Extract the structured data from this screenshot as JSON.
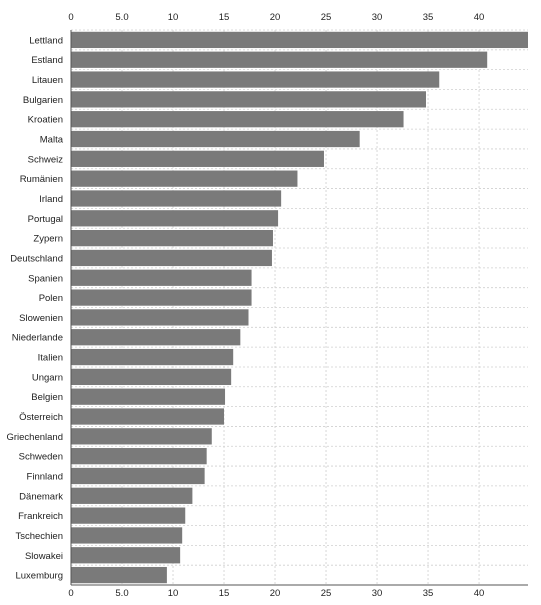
{
  "chart_data": {
    "type": "bar",
    "orientation": "horizontal",
    "title": "",
    "xlabel": "",
    "ylabel": "",
    "xlim": [
      0,
      44.8
    ],
    "x_ticks": [
      0,
      5,
      10,
      15,
      20,
      25,
      30,
      35,
      40
    ],
    "x_tick_labels": [
      "0",
      "5.0",
      "10",
      "15",
      "20",
      "25",
      "30",
      "35",
      "40"
    ],
    "x_axis_top_and_bottom": true,
    "grid": true,
    "bar_color": "#7a7a7a",
    "categories": [
      "Lettland",
      "Estland",
      "Litauen",
      "Bulgarien",
      "Kroatien",
      "Malta",
      "Schweiz",
      "Rumänien",
      "Irland",
      "Portugal",
      "Zypern",
      "Deutschland",
      "Spanien",
      "Polen",
      "Slowenien",
      "Niederlande",
      "Italien",
      "Ungarn",
      "Belgien",
      "Österreich",
      "Griechenland",
      "Schweden",
      "Finnland",
      "Dänemark",
      "Frankreich",
      "Tschechien",
      "Slowakei",
      "Luxemburg"
    ],
    "values": [
      44.8,
      40.8,
      36.1,
      34.8,
      32.6,
      28.3,
      24.8,
      22.2,
      20.6,
      20.3,
      19.8,
      19.7,
      17.7,
      17.7,
      17.4,
      16.6,
      15.9,
      15.7,
      15.1,
      15.0,
      13.8,
      13.3,
      13.1,
      11.9,
      11.2,
      10.9,
      10.7,
      9.4
    ]
  }
}
